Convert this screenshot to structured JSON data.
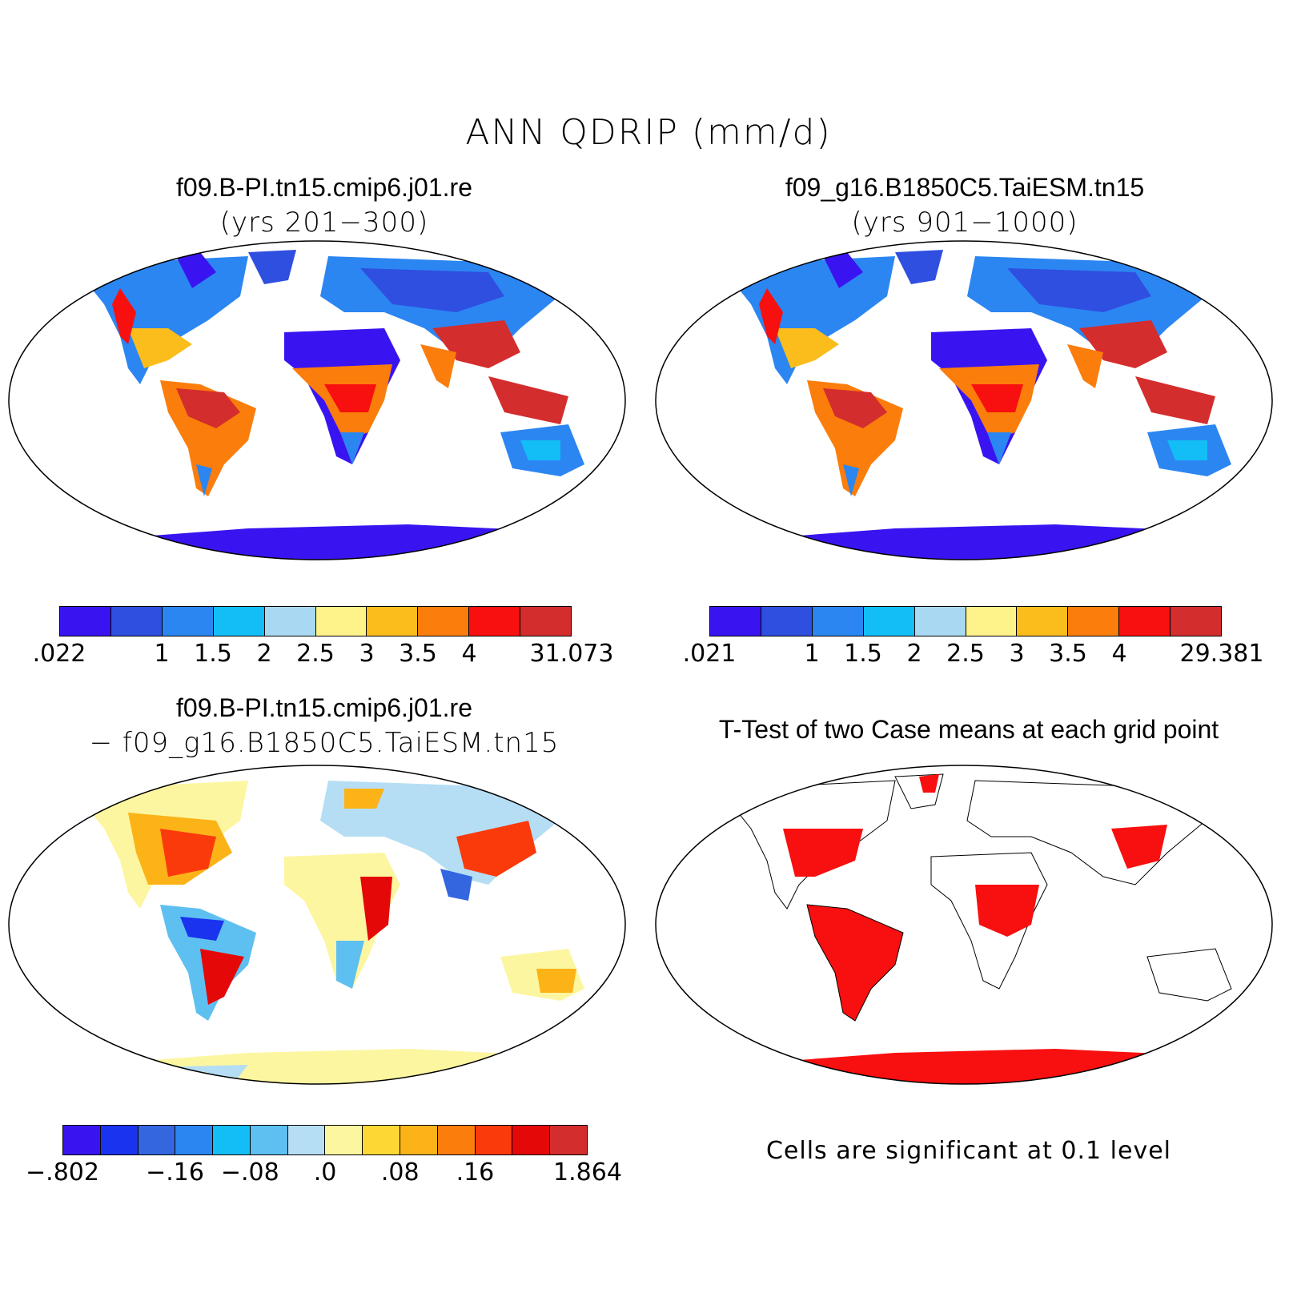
{
  "title": "ANN QDRIP (mm/d)",
  "panels": {
    "p1": {
      "title": "f09.B-PI.tn15.cmip6.j01.re",
      "subtitle": "(yrs 201−300)"
    },
    "p2": {
      "title": "f09_g16.B1850C5.TaiESM.tn15",
      "subtitle": "(yrs 901−1000)"
    },
    "p3": {
      "title": "f09.B-PI.tn15.cmip6.j01.re",
      "subtitle": "− f09_g16.B1850C5.TaiESM.tn15"
    },
    "p4": {
      "title": "T-Test of two Case means at each grid point",
      "note": "Cells are significant at 0.1 level"
    }
  },
  "colorbars": {
    "cb1": {
      "colors": [
        "#3a14f0",
        "#2f4fe0",
        "#2b86f2",
        "#13bdf5",
        "#a8d8f2",
        "#fdf38a",
        "#fbbd1c",
        "#fb7d0c",
        "#f80f0f",
        "#d42d2d"
      ],
      "labels": [
        ".022",
        "1",
        "1.5",
        "2",
        "2.5",
        "3",
        "3.5",
        "4",
        "31.073"
      ]
    },
    "cb2": {
      "colors": [
        "#3a14f0",
        "#2f4fe0",
        "#2b86f2",
        "#13bdf5",
        "#a8d8f2",
        "#fdf38a",
        "#fbbd1c",
        "#fb7d0c",
        "#f80f0f",
        "#d42d2d"
      ],
      "labels": [
        ".021",
        "1",
        "1.5",
        "2",
        "2.5",
        "3",
        "3.5",
        "4",
        "29.381"
      ]
    },
    "cb3": {
      "colors": [
        "#3a14f0",
        "#1a33ee",
        "#3466e0",
        "#2b86f2",
        "#13bdf5",
        "#5ec0f0",
        "#b5def4",
        "#fdf6a0",
        "#fdd835",
        "#fbb318",
        "#fb7d0c",
        "#fb3a0c",
        "#e50808",
        "#d42d2d"
      ],
      "labels": [
        "−.802",
        "−.16",
        "−.08",
        ".0",
        ".08",
        ".16",
        "1.864"
      ]
    }
  }
}
